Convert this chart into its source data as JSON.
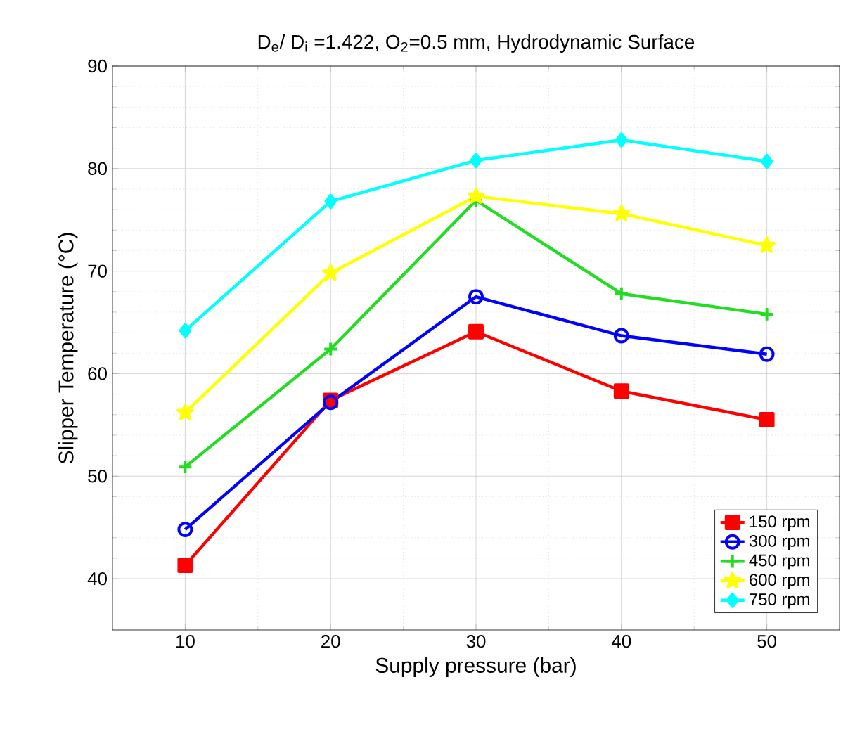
{
  "chart_data": {
    "type": "line",
    "title": "D$_{e}$/ D$_{i}$ =1.422, O$_{2}$=0.5 mm, Hydrodynamic Surface",
    "xlabel": "Supply pressure (bar)",
    "ylabel": "Slipper Temperature (°C)",
    "x": [
      10,
      20,
      30,
      40,
      50
    ],
    "xlim": [
      5,
      55
    ],
    "xticks": [
      10,
      20,
      30,
      40,
      50
    ],
    "ylim": [
      35,
      90
    ],
    "yticks": [
      40,
      50,
      60,
      70,
      80,
      90
    ],
    "grid": true,
    "legend": "bottom right",
    "series": [
      {
        "name": "150 rpm",
        "color": "#ff0000",
        "marker": "square",
        "values": [
          41.3,
          57.4,
          64.1,
          58.3,
          55.5
        ]
      },
      {
        "name": "300 rpm",
        "color": "#0000ff",
        "marker": "circle",
        "values": [
          44.8,
          57.2,
          67.5,
          63.7,
          61.9
        ]
      },
      {
        "name": "450 rpm",
        "color": "#22dd22",
        "marker": "cross",
        "values": [
          50.9,
          62.4,
          76.9,
          67.8,
          65.8
        ]
      },
      {
        "name": "600 rpm",
        "color": "#ffff00",
        "marker": "star",
        "values": [
          56.2,
          69.8,
          77.3,
          75.6,
          72.5
        ]
      },
      {
        "name": "750 rpm",
        "color": "#00ffff",
        "marker": "diamond",
        "values": [
          64.2,
          76.8,
          80.8,
          82.8,
          80.7
        ]
      }
    ]
  }
}
